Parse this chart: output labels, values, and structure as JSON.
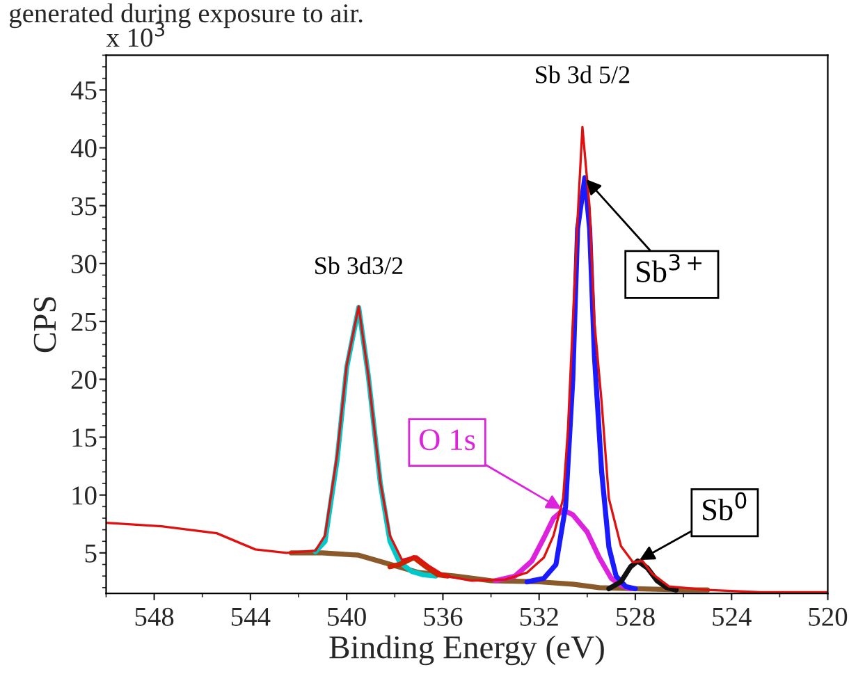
{
  "chart_data": {
    "type": "line",
    "xlabel": "Binding Energy (eV)",
    "ylabel": "CPS",
    "xlim": [
      550,
      520
    ],
    "xticks": [
      548,
      544,
      540,
      536,
      532,
      528,
      524,
      520
    ],
    "ylim": [
      1.5,
      48
    ],
    "yticks": [
      5,
      10,
      15,
      20,
      25,
      30,
      35,
      40,
      45
    ],
    "grid": false,
    "legend": false,
    "annotations": [
      "generated during exposure to air.",
      "x 10$^{3}$",
      {
        "text": "Sb 3d3/2",
        "x": 539.5,
        "y": 26.3
      },
      {
        "text": "Sb 3d 5/2",
        "x": 530.2,
        "y": 41.8
      },
      {
        "text": "Sb$^{3+}$",
        "x": 530.1,
        "y": 37.4
      },
      {
        "text": "O 1s",
        "x": 531.0,
        "y": 8.7
      },
      {
        "text": "Sb$^{0}$",
        "x": 527.9,
        "y": 4.3
      }
    ],
    "series": [
      {
        "color": "#8b5a2b",
        "x": [
          542.3,
          541,
          539.5,
          538,
          537,
          535.5,
          534,
          532,
          530.6,
          529.5,
          528,
          526,
          525
        ],
        "values": [
          5.0,
          5.0,
          4.8,
          3.9,
          3.3,
          3.0,
          2.6,
          2.5,
          2.3,
          2.0,
          1.9,
          1.8,
          1.8
        ]
      },
      {
        "color": "#00c8c8",
        "x": [
          541.3,
          540.9,
          540.4,
          540,
          539.5,
          539.1,
          538.6,
          538.2,
          537.8,
          537.3,
          536.8,
          536.3
        ],
        "values": [
          5.1,
          6.0,
          13,
          21,
          26.2,
          20.3,
          11,
          6.0,
          4.2,
          3.4,
          3.1,
          3.0
        ]
      },
      {
        "color": "#cc2200",
        "x": [
          538.2,
          537.8,
          537.2,
          536.7,
          536.2,
          535.8
        ],
        "values": [
          3.8,
          4.0,
          4.6,
          3.8,
          3.1,
          3.0
        ]
      },
      {
        "color": "#dd22dd",
        "x": [
          533.8,
          533,
          532.3,
          531.8,
          531.4,
          531,
          530.6,
          530,
          529.5,
          529,
          528.6,
          528.2
        ],
        "values": [
          2.6,
          3,
          4.3,
          6.3,
          8,
          8.7,
          8.3,
          6.8,
          4.6,
          2.8,
          2.2,
          1.9
        ]
      },
      {
        "color": "#1a1aff",
        "x": [
          532.5,
          531.8,
          531.3,
          530.9,
          530.6,
          530.4,
          530.1,
          529.9,
          529.7,
          529.4,
          529.1,
          528.8,
          528.4,
          528
        ],
        "values": [
          2.5,
          2.8,
          4,
          9,
          20,
          33,
          37.4,
          33,
          22,
          12,
          5.5,
          3,
          2.1,
          1.9
        ]
      },
      {
        "color": "#111111",
        "x": [
          529.1,
          528.6,
          528.2,
          527.9,
          527.5,
          527.1,
          526.7,
          526.3
        ],
        "values": [
          1.9,
          2.5,
          3.8,
          4.3,
          3.7,
          2.6,
          2.0,
          1.8
        ]
      },
      {
        "color": "#e01010",
        "x": [
          550,
          547.7,
          545.4,
          543.8,
          542.5,
          541.3,
          540.9,
          540.4,
          540,
          539.5,
          539.1,
          538.6,
          538.2,
          537.7,
          537.1,
          536.6,
          535.9,
          534.8,
          533.4,
          532.5,
          531.8,
          531.4,
          531,
          530.8,
          530.6,
          530.4,
          530.2,
          529.9,
          529.7,
          529.4,
          529.1,
          528.6,
          528.1,
          527.7,
          527.3,
          526.6,
          525,
          522.8,
          520
        ],
        "values": [
          7.6,
          7.3,
          6.7,
          5.3,
          5.0,
          5.2,
          6.5,
          13.4,
          21.2,
          26.3,
          20.3,
          11.1,
          6.5,
          4.4,
          4.7,
          3.9,
          3.0,
          2.6,
          2.7,
          3.3,
          4.6,
          6.5,
          9.7,
          15.7,
          24.9,
          33.9,
          41.8,
          34.8,
          24.9,
          18,
          9.7,
          5.6,
          4.2,
          4.3,
          3.2,
          2.1,
          1.8,
          1.6,
          1.6
        ]
      }
    ]
  }
}
